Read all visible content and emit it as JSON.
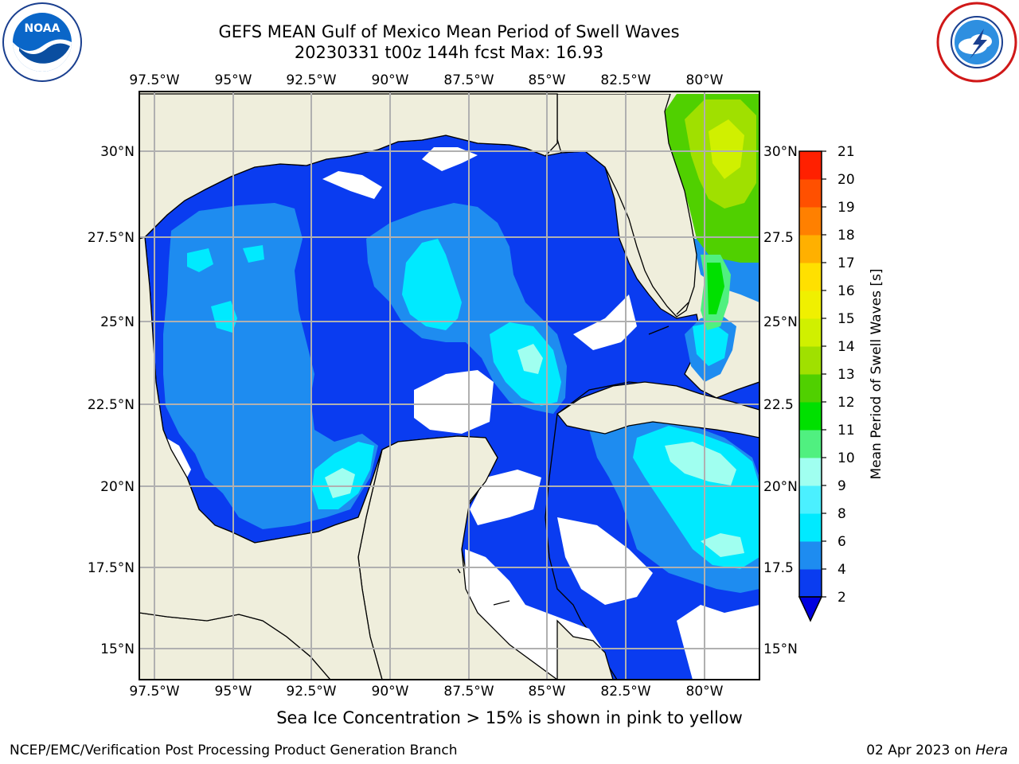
{
  "header": {
    "title_line1": "GEFS MEAN Gulf of Mexico Mean Period of Swell Waves",
    "title_line2": "20230331 t00z 144h fcst   Max: 16.93"
  },
  "logos": {
    "left": "noaa-logo",
    "right": "national-weather-service-logo"
  },
  "map": {
    "lon_labels": [
      "97.5°W",
      "95°W",
      "92.5°W",
      "90°W",
      "87.5°W",
      "85°W",
      "82.5°W",
      "80°W"
    ],
    "lat_labels_left": [
      "30°N",
      "27.5°N",
      "25°N",
      "22.5°N",
      "20°N",
      "17.5°N",
      "15°N"
    ],
    "lat_labels_right": [
      "30°N",
      "27.5",
      "25°N",
      "22.5",
      "20°N",
      "17.5",
      "15°N"
    ],
    "colors": {
      "land": "#efeedc",
      "no_data": "#ffffff",
      "grid": "#b0b0b0"
    }
  },
  "colorbar": {
    "label": "Mean Period of Swell Waves [s]",
    "ticks": [
      "2",
      "4",
      "6",
      "8",
      "9",
      "10",
      "11",
      "12",
      "13",
      "14",
      "15",
      "16",
      "17",
      "18",
      "19",
      "20",
      "21"
    ],
    "colors": [
      "#0a3cf0",
      "#1e8cf0",
      "#00eaff",
      "#4bf0ff",
      "#a0fff0",
      "#50f080",
      "#00e000",
      "#50d000",
      "#a0e000",
      "#d0f000",
      "#f0f000",
      "#ffe000",
      "#ffb000",
      "#ff8000",
      "#ff5000",
      "#ff2000"
    ]
  },
  "footer": {
    "note": "Sea Ice Concentration > 15% is shown in pink to yellow",
    "credit_left": "NCEP/EMC/Verification Post Processing Product Generation Branch",
    "credit_date": "02 Apr 2023 on ",
    "credit_host": "Hera"
  }
}
